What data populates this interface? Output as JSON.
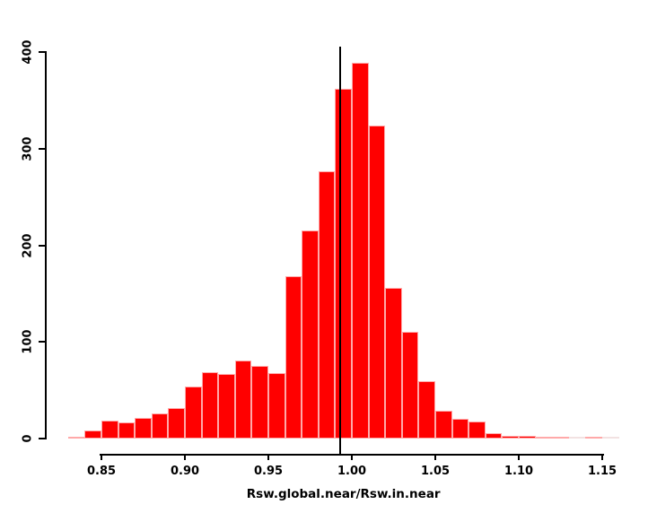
{
  "figure": {
    "background_color": "#ffffff",
    "bar_fill_color": "#ff0000",
    "bar_border_color": "#ffa9a9",
    "axis_color": "#000000",
    "reference_line_color": "#000000"
  },
  "chart_data": {
    "type": "bar",
    "subtype": "histogram",
    "title": "",
    "xlabel": "Rsw.global.near/Rsw.in.near",
    "ylabel": "",
    "bin_start": 0.83,
    "bin_width": 0.01,
    "counts": [
      2,
      8,
      19,
      17,
      21,
      26,
      32,
      54,
      69,
      67,
      81,
      75,
      68,
      168,
      215,
      277,
      362,
      389,
      324,
      156,
      110,
      59,
      29,
      20,
      18,
      6,
      3,
      3,
      2,
      2,
      0,
      2,
      0
    ],
    "x_ticks": [
      0.85,
      0.9,
      0.95,
      1.0,
      1.05,
      1.1,
      1.15
    ],
    "x_tick_labels": [
      "0.85",
      "0.90",
      "0.95",
      "1.00",
      "1.05",
      "1.10",
      "1.15"
    ],
    "y_ticks": [
      0,
      100,
      200,
      300,
      400
    ],
    "y_tick_labels": [
      "0",
      "100",
      "200",
      "300",
      "400"
    ],
    "xlim": [
      0.828,
      1.168
    ],
    "ylim": [
      0,
      400
    ],
    "vline_x": 0.993,
    "grid": false,
    "legend": null
  }
}
